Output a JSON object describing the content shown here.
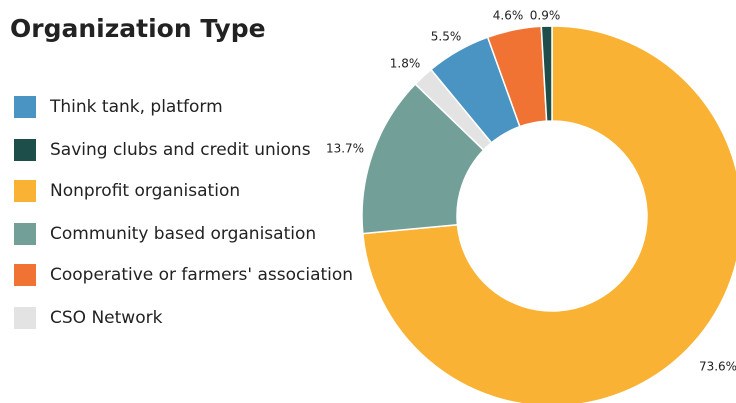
{
  "chart_data": {
    "type": "pie",
    "title": "Organization Type",
    "categories": [
      "Think tank, platform",
      "Saving clubs and credit unions",
      "Nonprofit organisation",
      "Community based organisation",
      "Cooperative or farmers' association",
      "CSO Network"
    ],
    "values": [
      5.5,
      0.9,
      73.6,
      13.7,
      4.6,
      1.8
    ],
    "value_labels": [
      "5.5%",
      "0.9%",
      "73.6%",
      "13.7%",
      "4.6%",
      "1.8%"
    ],
    "colors": [
      "#4a94c4",
      "#1d4e4a",
      "#f9b233",
      "#72a098",
      "#f07333",
      "#e3e3e3"
    ],
    "donut": true
  }
}
